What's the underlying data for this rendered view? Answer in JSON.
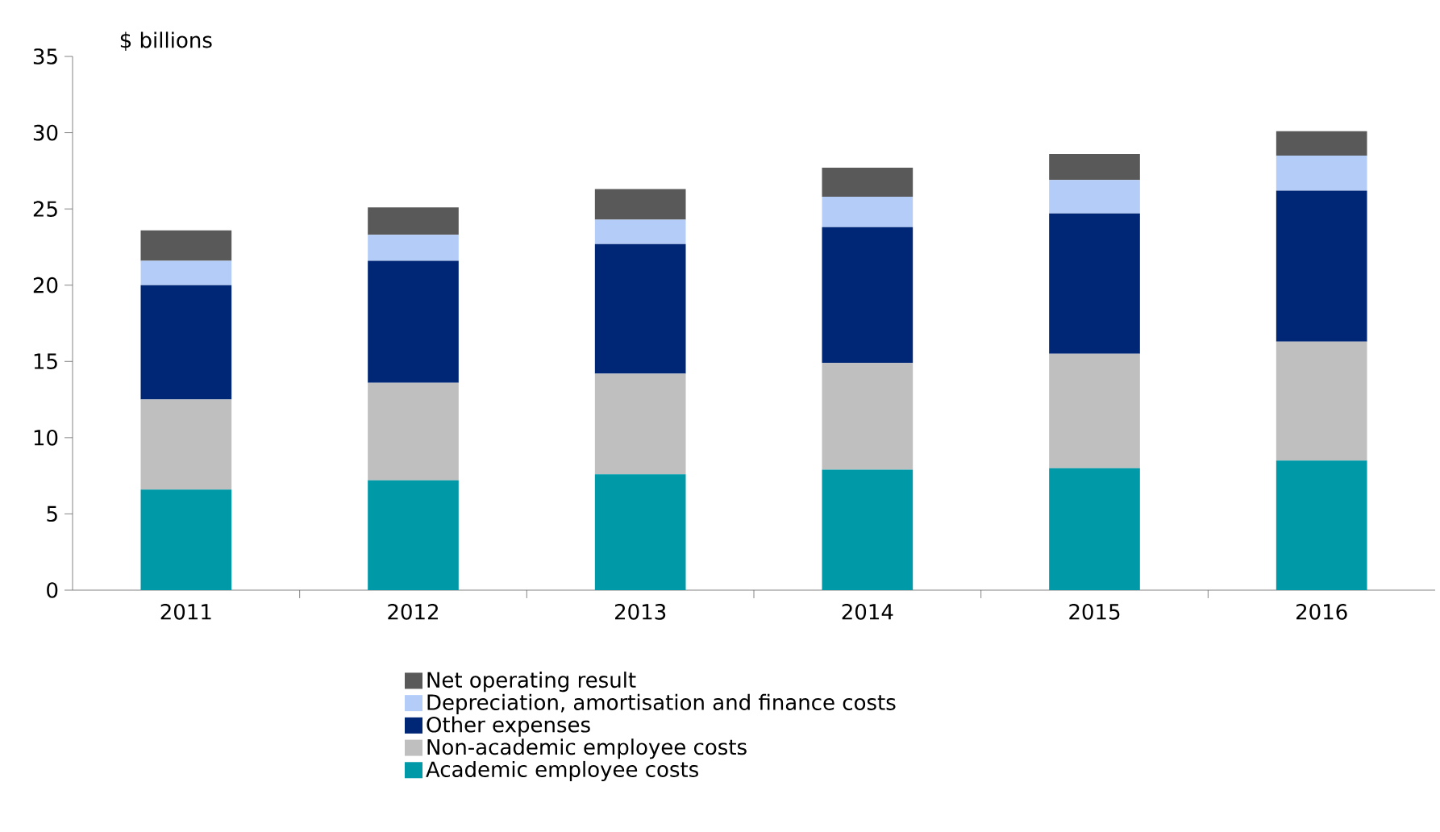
{
  "chart_data": {
    "type": "bar",
    "ylabel": "$ billions",
    "stacked": true,
    "legend": "bottom",
    "grid": false,
    "categories": [
      "2011",
      "2012",
      "2013",
      "2014",
      "2015",
      "2016"
    ],
    "ylim": [
      0,
      35
    ],
    "yticks": [
      0,
      5,
      10,
      15,
      20,
      25,
      30,
      35
    ],
    "series": [
      {
        "name": "Academic employee costs",
        "color": "#0099a8",
        "values": [
          6.6,
          7.2,
          7.6,
          7.9,
          8.0,
          8.5
        ]
      },
      {
        "name": "Non-academic employee costs",
        "color": "#bfbfbf",
        "values": [
          5.9,
          6.4,
          6.6,
          7.0,
          7.5,
          7.8
        ]
      },
      {
        "name": "Other expenses",
        "color": "#002776",
        "values": [
          7.5,
          8.0,
          8.5,
          8.9,
          9.2,
          9.9
        ]
      },
      {
        "name": "Depreciation, amortisation and finance costs",
        "color": "#b3cdf8",
        "values": [
          1.6,
          1.7,
          1.6,
          2.0,
          2.2,
          2.3
        ]
      },
      {
        "name": "Net operating result",
        "color": "#595959",
        "values": [
          2.0,
          1.8,
          2.0,
          1.9,
          1.7,
          1.6
        ]
      }
    ]
  }
}
